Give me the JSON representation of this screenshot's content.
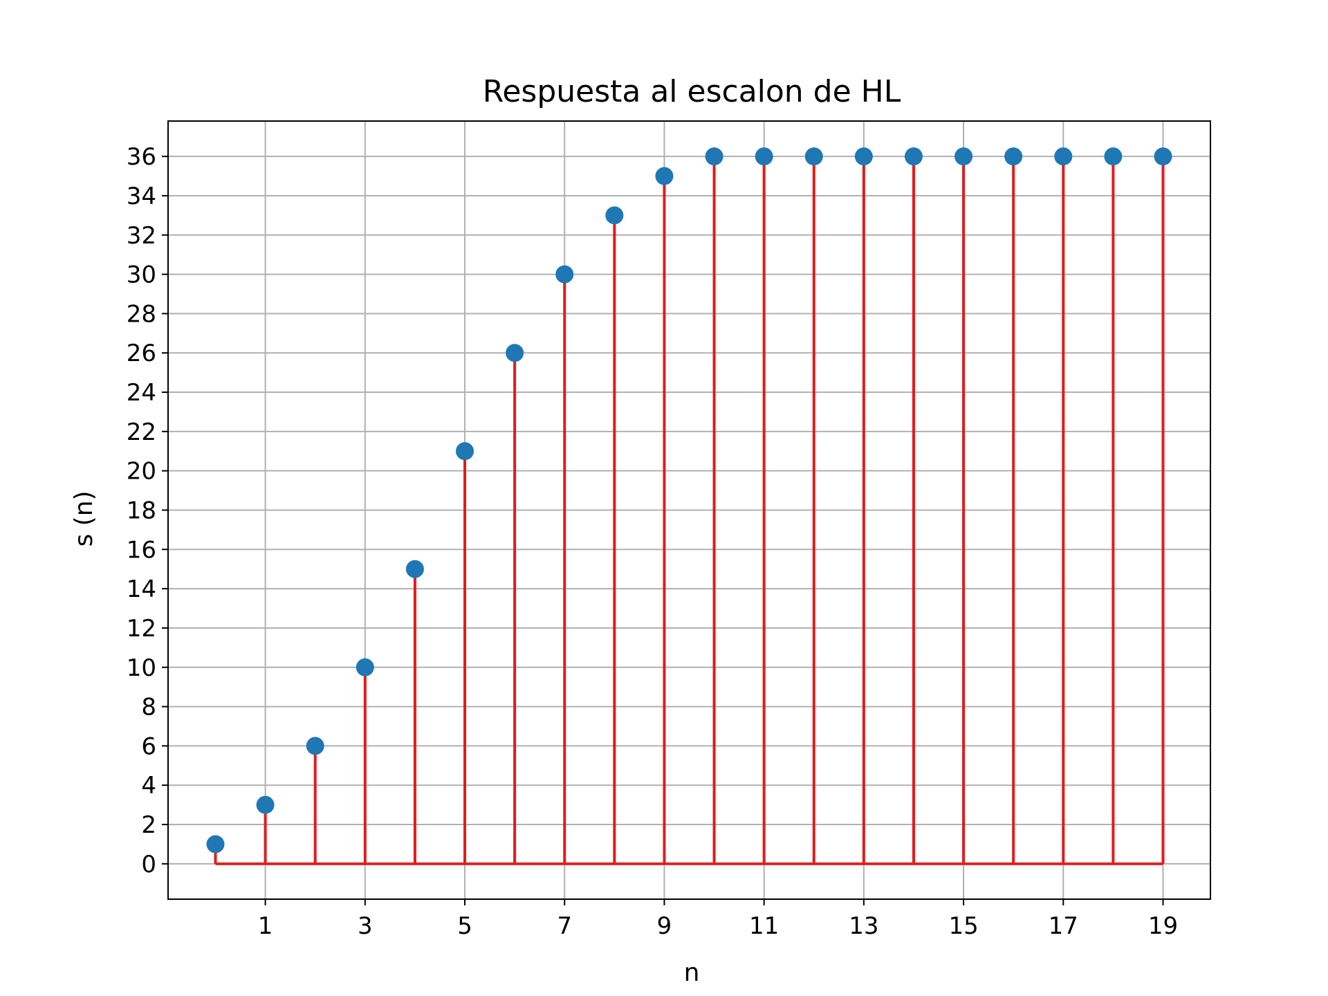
{
  "chart_data": {
    "type": "stem",
    "title": "Respuesta al escalon de HL",
    "xlabel": "n",
    "ylabel": "s (n)",
    "x": [
      0,
      1,
      2,
      3,
      4,
      5,
      6,
      7,
      8,
      9,
      10,
      11,
      12,
      13,
      14,
      15,
      16,
      17,
      18,
      19
    ],
    "values": [
      1,
      3,
      6,
      10,
      15,
      21,
      26,
      30,
      33,
      35,
      36,
      36,
      36,
      36,
      36,
      36,
      36,
      36,
      36,
      36
    ],
    "xlim": [
      -0.95,
      19.95
    ],
    "ylim": [
      -1.8,
      37.8
    ],
    "xticks": [
      1,
      3,
      5,
      7,
      9,
      11,
      13,
      15,
      17,
      19
    ],
    "yticks": [
      0,
      2,
      4,
      6,
      8,
      10,
      12,
      14,
      16,
      18,
      20,
      22,
      24,
      26,
      28,
      30,
      32,
      34,
      36
    ],
    "grid": true,
    "colors": {
      "marker": "#1f77b4",
      "stem": "#e31a1c",
      "baseline": "#d62728",
      "grid": "#b0b0b0",
      "axes": "#000000"
    }
  }
}
